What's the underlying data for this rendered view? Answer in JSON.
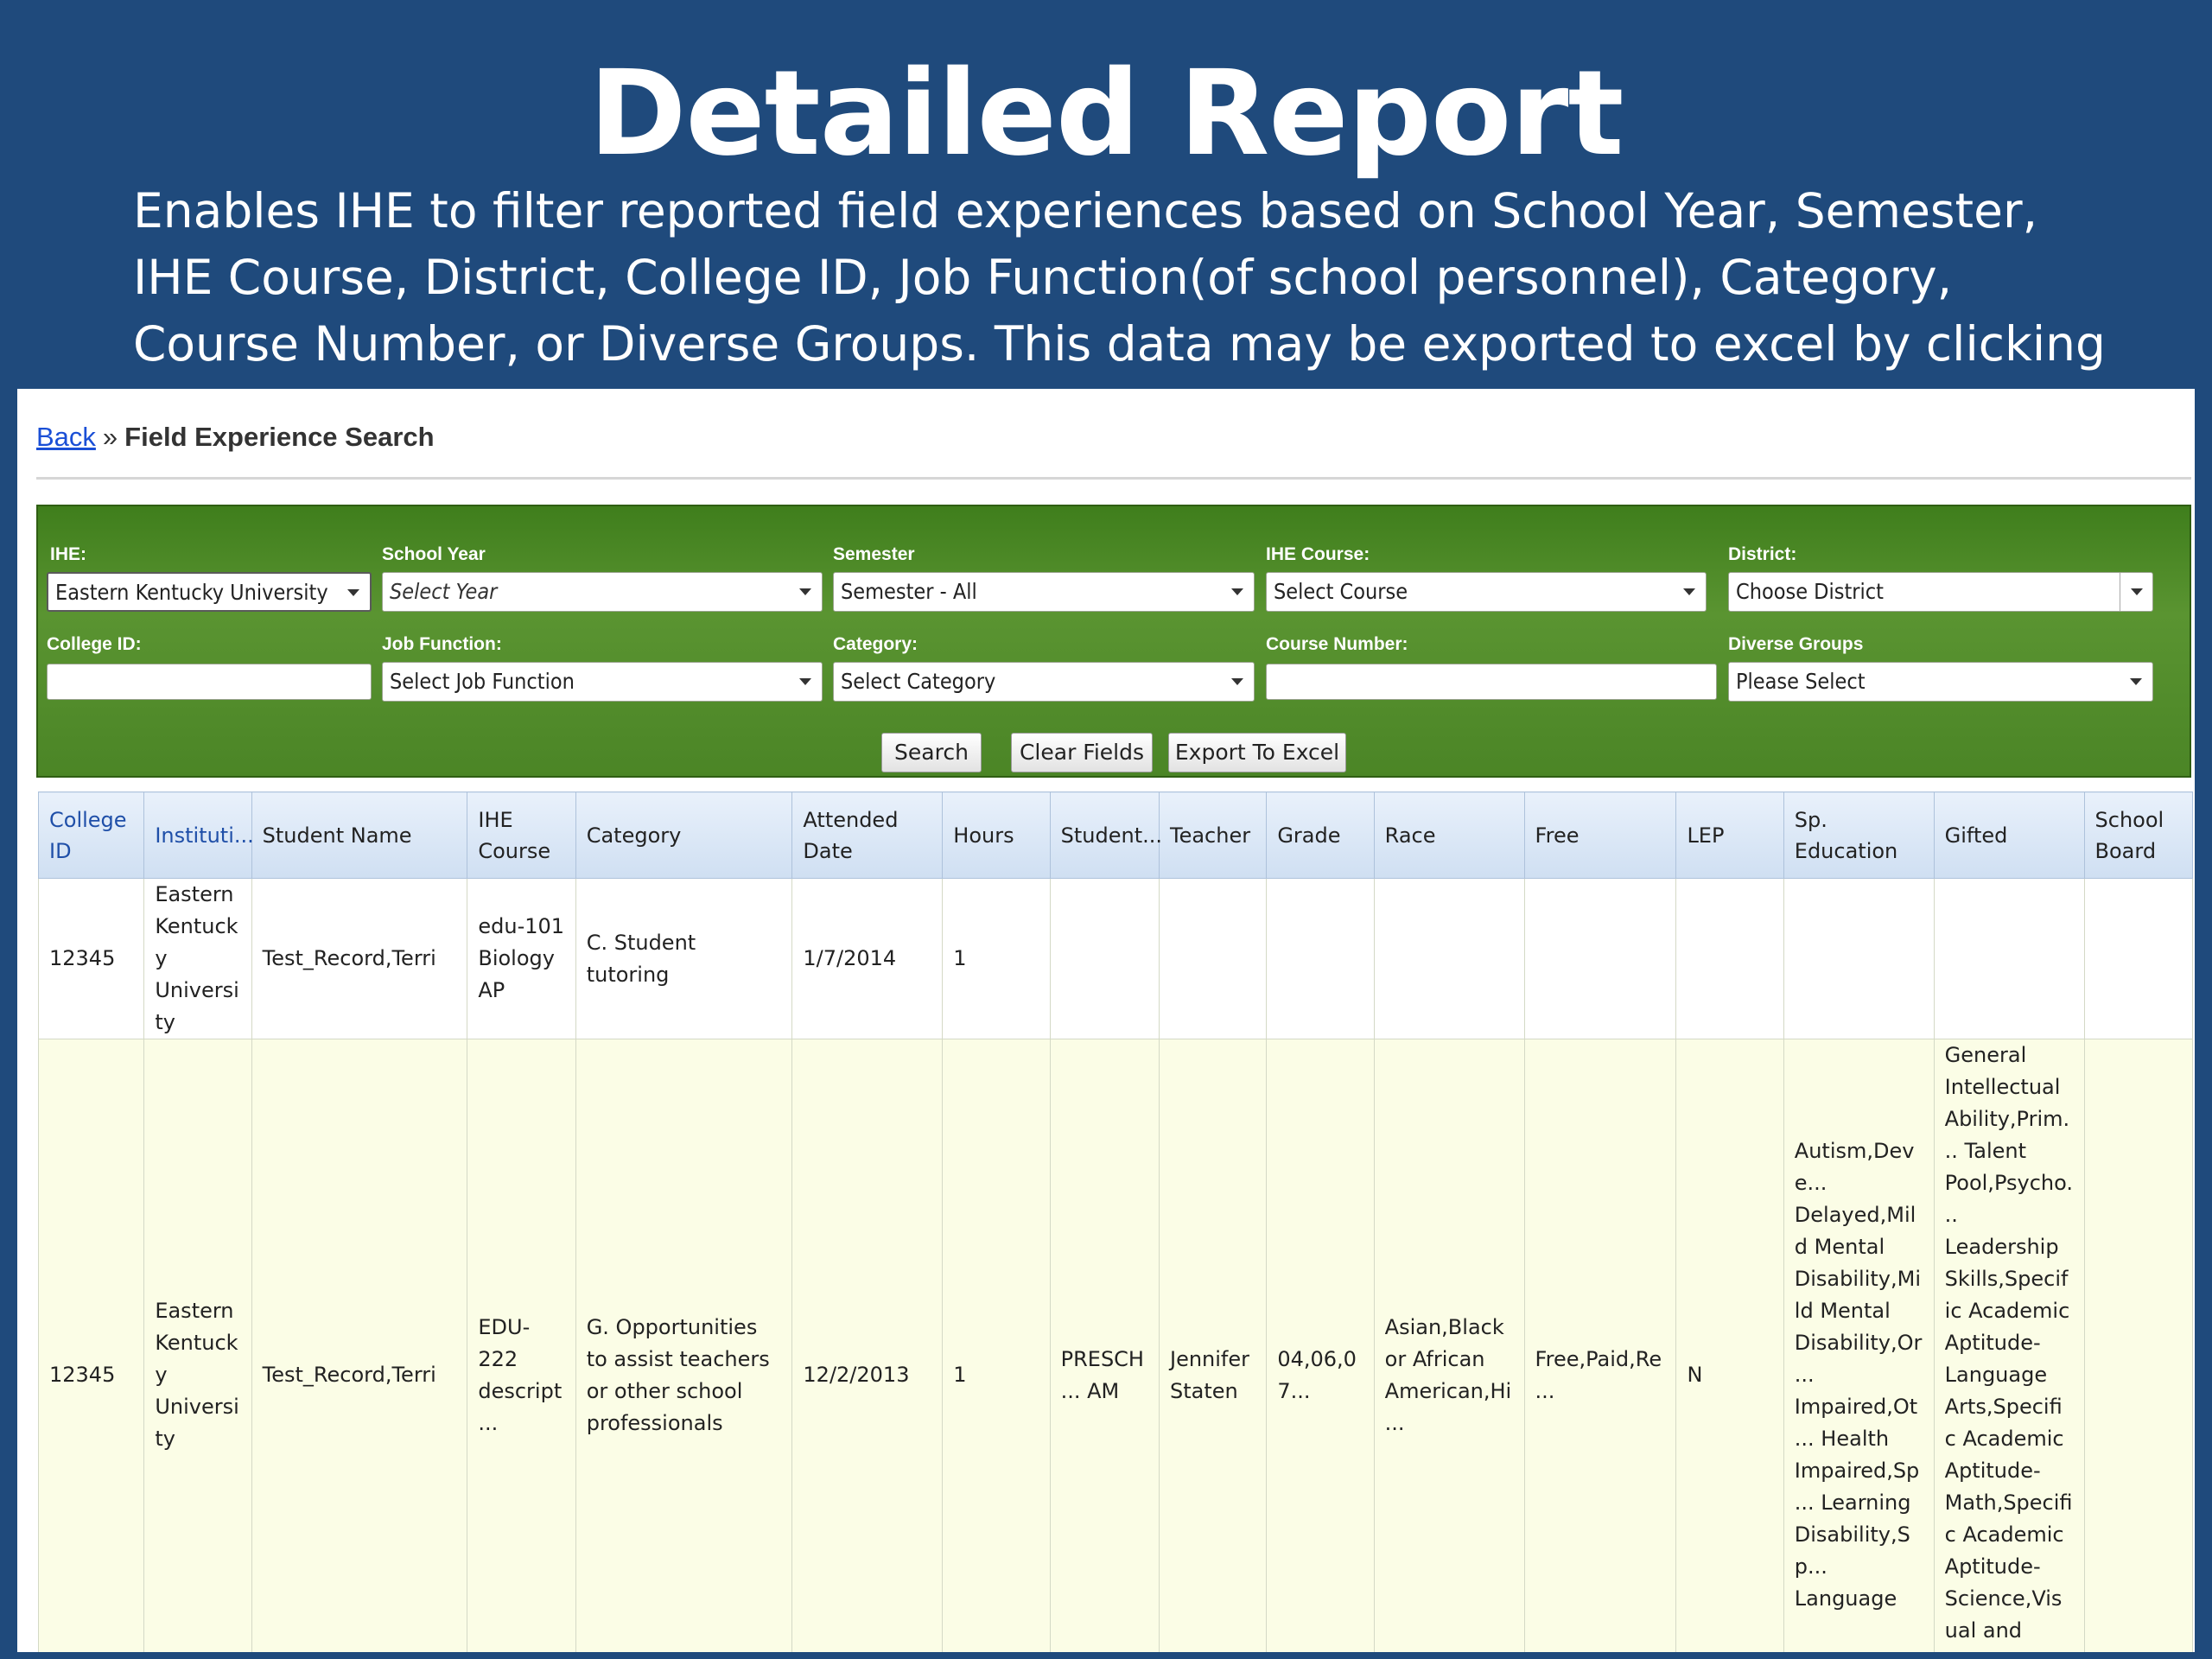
{
  "slide": {
    "title": "Detailed Report",
    "description": "Enables IHE to filter reported field experiences based on School Year, Semester, IHE Course, District, College ID, Job Function(of school personnel), Category, Course Number, or Diverse Groups. This data may be exported to excel by clicking “Export to Excel”."
  },
  "breadcrumb": {
    "back_label": "Back",
    "separator": "»",
    "current": "Field Experience Search"
  },
  "filters": {
    "ihe": {
      "label": "IHE:",
      "value": "Eastern Kentucky University"
    },
    "school_year": {
      "label": "School Year",
      "value": "Select Year"
    },
    "semester": {
      "label": "Semester",
      "value": "Semester - All"
    },
    "ihe_course": {
      "label": "IHE Course:",
      "value": "Select Course"
    },
    "district": {
      "label": "District:",
      "value": "Choose District"
    },
    "college_id": {
      "label": "College ID:",
      "value": ""
    },
    "job_function": {
      "label": "Job Function:",
      "value": "Select Job Function"
    },
    "category": {
      "label": "Category:",
      "value": "Select Category"
    },
    "course_number": {
      "label": "Course Number:",
      "value": ""
    },
    "diverse_groups": {
      "label": "Diverse Groups",
      "value": "Please Select"
    }
  },
  "buttons": {
    "search": "Search",
    "clear": "Clear Fields",
    "export": "Export To Excel"
  },
  "table": {
    "headers": [
      "College ID",
      "Instituti...",
      "Student Name",
      "IHE Course",
      "Category",
      "Attended Date",
      "Hours",
      "Student...",
      "Teacher",
      "Grade",
      "Race",
      "Free",
      "LEP",
      "Sp. Education",
      "Gifted",
      "School Board"
    ],
    "rows": [
      [
        "12345",
        "Eastern Kentucky University",
        "Test_Record,Terri",
        "edu-101 Biology AP",
        "C. Student tutoring",
        "1/7/2014",
        "1",
        "",
        "",
        "",
        "",
        "",
        "",
        "",
        "",
        ""
      ],
      [
        "12345",
        "Eastern Kentucky University",
        "Test_Record,Terri",
        "EDU-222 descript...",
        "G. Opportunities to assist teachers or other school professionals",
        "12/2/2013",
        "1",
        "PRESCH... AM",
        "Jennifer Staten",
        "04,06,07...",
        "Asian,Black or African American,Hi...",
        "Free,Paid,Re...",
        "N",
        "Autism,Deve... Delayed,Mild Mental Disability,Mild Mental Disability,Or... Impaired,Ot... Health Impaired,Sp... Learning Disability,Sp... Language",
        "General Intellectual Ability,Prim... Talent Pool,Psycho... Leadership Skills,Specific Academic Aptitude-Language Arts,Specific Academic Aptitude-Math,Specific Academic Aptitude-Science,Visual and Performing Arts-Music",
        ""
      ]
    ]
  },
  "colors": {
    "slide_bg": "#1f4a7c",
    "filter_bg": "#4b8526",
    "header_bg": "#cfdff2",
    "row_highlight": "#fbfde6",
    "link": "#1a4fd6"
  }
}
